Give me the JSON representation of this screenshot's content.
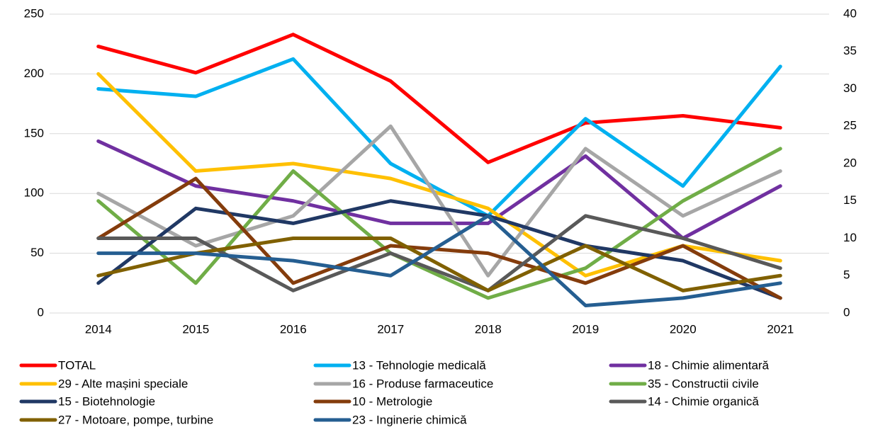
{
  "chart_data": {
    "type": "line",
    "categories": [
      "2014",
      "2015",
      "2016",
      "2017",
      "2018",
      "2019",
      "2020",
      "2021"
    ],
    "ylim": [
      0,
      250
    ],
    "yticks": [
      0,
      50,
      100,
      150,
      200,
      250
    ],
    "y2lim": [
      0,
      40
    ],
    "y2ticks": [
      0,
      5,
      10,
      15,
      20,
      25,
      30,
      35,
      40
    ],
    "grid": true,
    "legend": "bottom",
    "series": [
      {
        "name": "TOTAL",
        "color": "#ff0000",
        "axis": "y",
        "values": [
          223,
          201,
          233,
          194,
          126,
          159,
          165,
          155
        ]
      },
      {
        "name": "13 - Tehnologie medicală",
        "color": "#00b0f0",
        "axis": "y2",
        "values": [
          30,
          29,
          34,
          20,
          13,
          26,
          17,
          33
        ]
      },
      {
        "name": "18 - Chimie alimentară",
        "color": "#7030a0",
        "axis": "y2",
        "values": [
          23,
          17,
          15,
          12,
          12,
          21,
          10,
          17
        ]
      },
      {
        "name": "29 - Alte mașini speciale",
        "color": "#ffc000",
        "axis": "y2",
        "values": [
          32,
          19,
          20,
          18,
          14,
          5,
          9,
          7
        ]
      },
      {
        "name": "16 - Produse farmaceutice",
        "color": "#a6a6a6",
        "axis": "y2",
        "values": [
          16,
          9,
          13,
          25,
          5,
          22,
          13,
          19
        ]
      },
      {
        "name": "35 - Constructii civile",
        "color": "#70ad47",
        "axis": "y2",
        "values": [
          15,
          4,
          19,
          8,
          2,
          6,
          15,
          22
        ]
      },
      {
        "name": "15 - Biotehnologie",
        "color": "#203864",
        "axis": "y2",
        "values": [
          4,
          14,
          12,
          15,
          13,
          9,
          7,
          2
        ]
      },
      {
        "name": "10 - Metrologie",
        "color": "#843c0c",
        "axis": "y2",
        "values": [
          10,
          18,
          4,
          9,
          8,
          4,
          9,
          2
        ]
      },
      {
        "name": "14 - Chimie organică",
        "color": "#595959",
        "axis": "y2",
        "values": [
          10,
          10,
          3,
          8,
          3,
          13,
          10,
          6
        ]
      },
      {
        "name": "27 - Motoare, pompe, turbine",
        "color": "#806000",
        "axis": "y2",
        "values": [
          5,
          8,
          10,
          10,
          3,
          9,
          3,
          5
        ]
      },
      {
        "name": "23 - Inginerie chimică",
        "color": "#255e91",
        "axis": "y2",
        "values": [
          8,
          8,
          7,
          5,
          13,
          1,
          2,
          4
        ]
      }
    ]
  }
}
